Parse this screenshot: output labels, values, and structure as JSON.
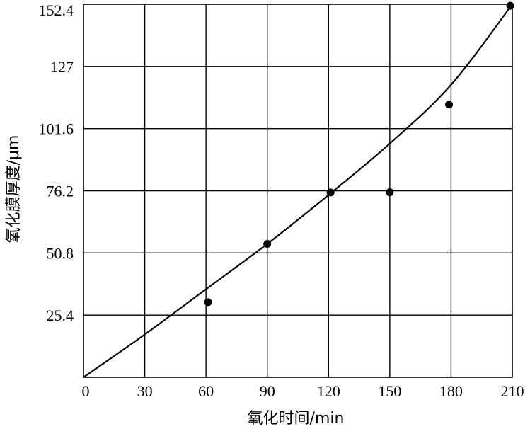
{
  "chart_data": {
    "type": "scatter",
    "xlabel": "氧化时间/min",
    "ylabel": "氧化膜厚度/μm",
    "xlim": [
      0,
      210
    ],
    "ylim": [
      0,
      152.4
    ],
    "x_ticks": [
      0,
      30,
      60,
      90,
      120,
      150,
      180,
      210
    ],
    "y_ticks": [
      25.4,
      50.8,
      76.2,
      101.6,
      127,
      152.4
    ],
    "x_tick_labels": [
      "0",
      "30",
      "60",
      "90",
      "120",
      "150",
      "180",
      "210"
    ],
    "y_tick_labels": [
      "25.4",
      "50.8",
      "76.2",
      "101.6",
      "127",
      "152.4"
    ],
    "grid": true,
    "series": [
      {
        "type": "scatter",
        "x": [
          61,
          90,
          121,
          150,
          179,
          209
        ],
        "y": [
          30.7,
          54.5,
          75.5,
          75.6,
          111.4,
          151.8
        ]
      },
      {
        "type": "line",
        "x": [
          0,
          30,
          60,
          90,
          120,
          150,
          180,
          210
        ],
        "y": [
          0,
          17.5,
          36.0,
          54.5,
          74.5,
          95.5,
          119.5,
          152.4
        ]
      }
    ]
  }
}
